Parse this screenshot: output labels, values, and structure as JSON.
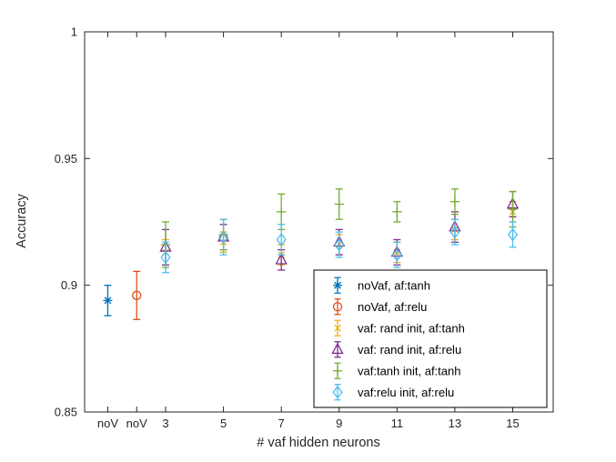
{
  "figure": {
    "background": "#ffffff",
    "axis_color": "#262626",
    "tick_label_color": "#262626"
  },
  "chart_data": {
    "type": "scatter",
    "subtype": "errorbar",
    "title": "",
    "xlabel": "# vaf hidden neurons",
    "ylabel": "Accuracy",
    "xlim": [
      0.2,
      16.4
    ],
    "ylim": [
      0.85,
      1.0
    ],
    "grid": false,
    "yticks": [
      {
        "v": 0.85,
        "label": "0.85"
      },
      {
        "v": 0.9,
        "label": "0.9"
      },
      {
        "v": 0.95,
        "label": "0.95"
      },
      {
        "v": 1,
        "label": "1"
      }
    ],
    "xticks": [
      {
        "v": 1,
        "label": "noV"
      },
      {
        "v": 2,
        "label": "noV"
      },
      {
        "v": 3,
        "label": "3"
      },
      {
        "v": 5,
        "label": "5"
      },
      {
        "v": 7,
        "label": "7"
      },
      {
        "v": 9,
        "label": "9"
      },
      {
        "v": 11,
        "label": "11"
      },
      {
        "v": 13,
        "label": "13"
      },
      {
        "v": 15,
        "label": "15"
      }
    ],
    "legend": {
      "position": "lower-right-inside",
      "border_color": "#000000",
      "background": "#ffffff",
      "text_color": "#000000"
    },
    "series": [
      {
        "name": "noVaf, af:tanh",
        "marker": "asterisk",
        "color": "#0072BD",
        "points": [
          {
            "x": 1,
            "y": 0.894,
            "err": 0.006
          }
        ]
      },
      {
        "name": "noVaf, af:relu",
        "marker": "circle",
        "color": "#D95319",
        "points": [
          {
            "x": 2,
            "y": 0.896,
            "err": 0.0095
          }
        ]
      },
      {
        "name": "vaf: rand init, af:tanh",
        "marker": "x",
        "color": "#EDB120",
        "points": [
          {
            "x": 3,
            "y": 0.913,
            "err": 0.005
          },
          {
            "x": 5,
            "y": 0.917,
            "err": 0.004
          },
          {
            "x": 7,
            "y": 0.912,
            "err": 0.004
          },
          {
            "x": 9,
            "y": 0.916,
            "err": 0.004
          },
          {
            "x": 11,
            "y": 0.913,
            "err": 0.004
          },
          {
            "x": 13,
            "y": 0.922,
            "err": 0.004
          },
          {
            "x": 15,
            "y": 0.929,
            "err": 0.004
          }
        ]
      },
      {
        "name": "vaf: rand init, af:relu",
        "marker": "triangle",
        "color": "#7E2F8E",
        "points": [
          {
            "x": 3,
            "y": 0.915,
            "err": 0.007
          },
          {
            "x": 5,
            "y": 0.919,
            "err": 0.005
          },
          {
            "x": 7,
            "y": 0.91,
            "err": 0.004
          },
          {
            "x": 9,
            "y": 0.917,
            "err": 0.005
          },
          {
            "x": 11,
            "y": 0.913,
            "err": 0.005
          },
          {
            "x": 13,
            "y": 0.923,
            "err": 0.006
          },
          {
            "x": 15,
            "y": 0.932,
            "err": 0.005
          }
        ]
      },
      {
        "name": "vaf:tanh init, af:tanh",
        "marker": "plus",
        "color": "#77AC30",
        "points": [
          {
            "x": 3,
            "y": 0.916,
            "err": 0.009
          },
          {
            "x": 5,
            "y": 0.92,
            "err": 0.006
          },
          {
            "x": 7,
            "y": 0.929,
            "err": 0.007
          },
          {
            "x": 9,
            "y": 0.932,
            "err": 0.006
          },
          {
            "x": 11,
            "y": 0.929,
            "err": 0.004
          },
          {
            "x": 13,
            "y": 0.933,
            "err": 0.005
          },
          {
            "x": 15,
            "y": 0.93,
            "err": 0.007
          }
        ]
      },
      {
        "name": "vaf:relu init, af:relu",
        "marker": "diamond",
        "color": "#4DBEEE",
        "points": [
          {
            "x": 3,
            "y": 0.911,
            "err": 0.006
          },
          {
            "x": 5,
            "y": 0.919,
            "err": 0.007
          },
          {
            "x": 7,
            "y": 0.918,
            "err": 0.006
          },
          {
            "x": 9,
            "y": 0.916,
            "err": 0.005
          },
          {
            "x": 11,
            "y": 0.912,
            "err": 0.005
          },
          {
            "x": 13,
            "y": 0.921,
            "err": 0.005
          },
          {
            "x": 15,
            "y": 0.92,
            "err": 0.005
          }
        ]
      }
    ]
  }
}
